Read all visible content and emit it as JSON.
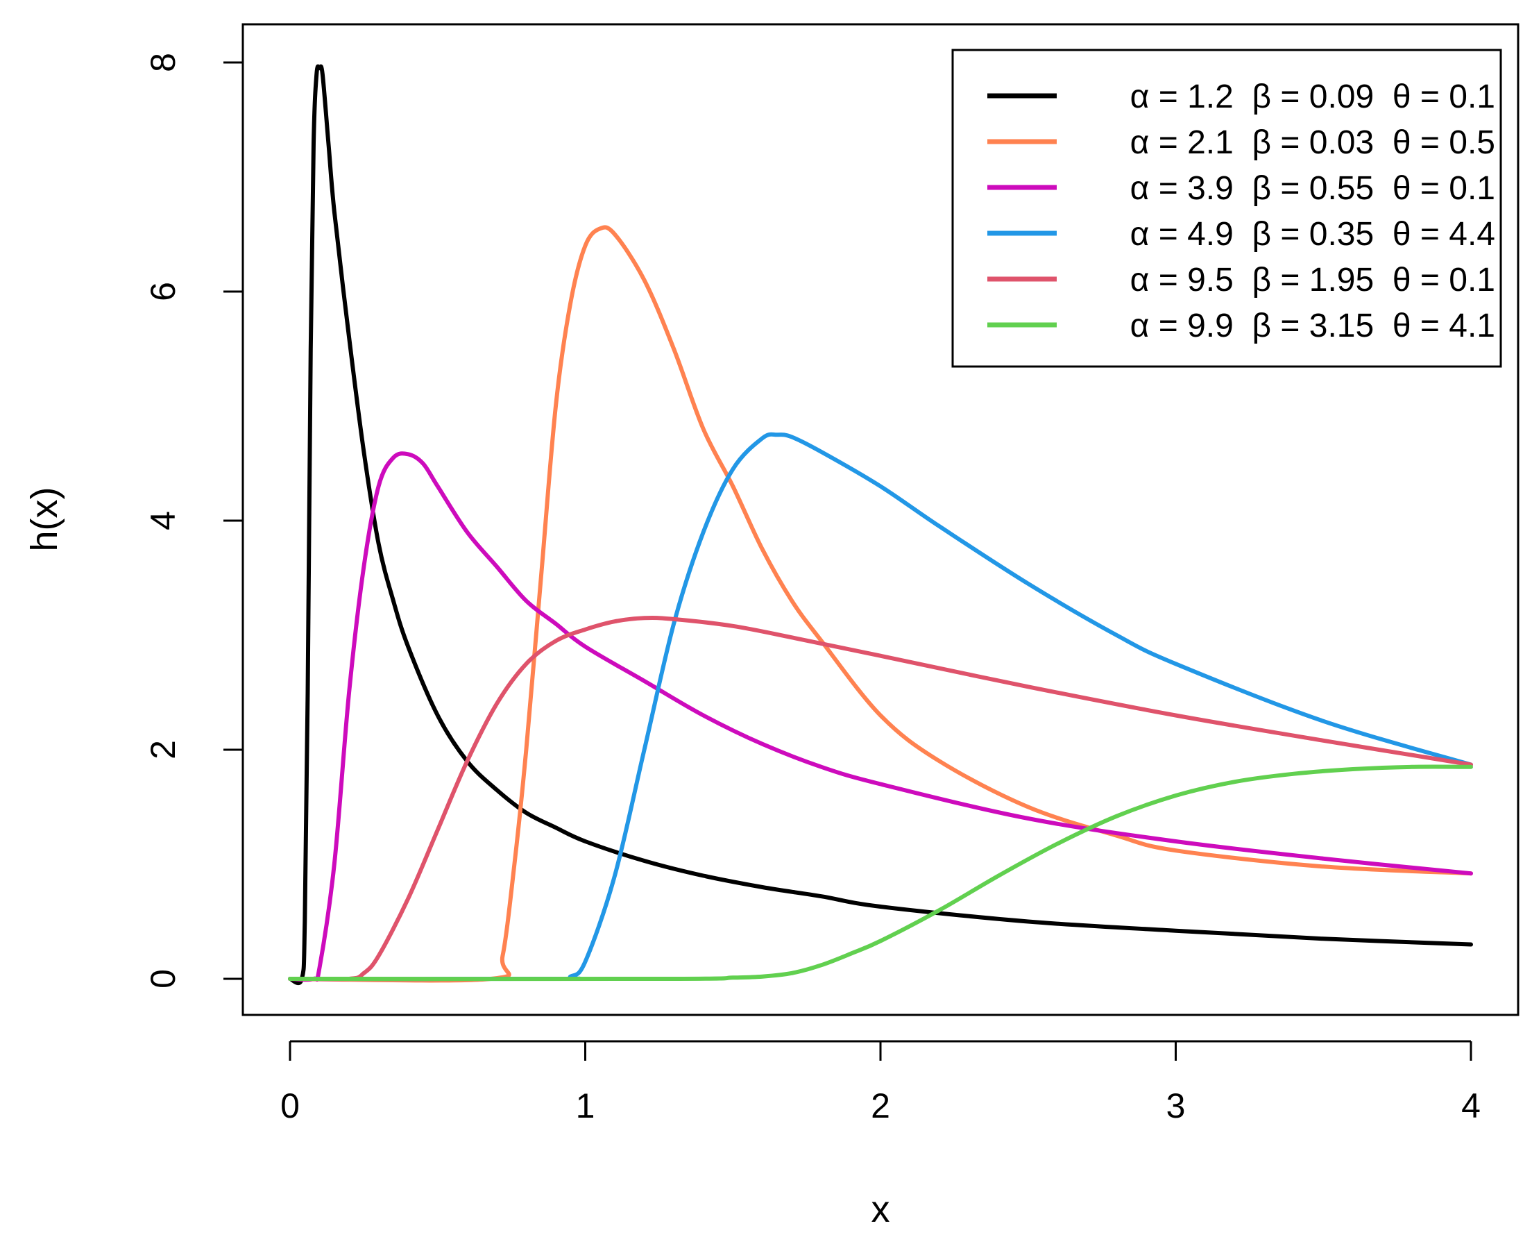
{
  "chart_data": {
    "type": "line",
    "title": "",
    "xlabel": "x",
    "ylabel": "h(x)",
    "xlim": [
      0,
      4
    ],
    "ylim": [
      0,
      8
    ],
    "xticks": [
      "0",
      "1",
      "2",
      "3",
      "4"
    ],
    "yticks": [
      "0",
      "2",
      "4",
      "6",
      "8"
    ],
    "grid": false,
    "legend_position": "top-right",
    "series": [
      {
        "name": "α = 1.2  β = 0.09  θ = 0.1",
        "color": "#000000",
        "points": [
          [
            0,
            0
          ],
          [
            0.04,
            0
          ],
          [
            0.05,
            0.5
          ],
          [
            0.06,
            2.5
          ],
          [
            0.07,
            5.5
          ],
          [
            0.08,
            7.3
          ],
          [
            0.09,
            7.9
          ],
          [
            0.1,
            7.95
          ],
          [
            0.11,
            7.9
          ],
          [
            0.13,
            7.3
          ],
          [
            0.15,
            6.7
          ],
          [
            0.2,
            5.6
          ],
          [
            0.25,
            4.6
          ],
          [
            0.3,
            3.8
          ],
          [
            0.35,
            3.3
          ],
          [
            0.4,
            2.9
          ],
          [
            0.5,
            2.3
          ],
          [
            0.6,
            1.9
          ],
          [
            0.7,
            1.65
          ],
          [
            0.8,
            1.45
          ],
          [
            0.9,
            1.32
          ],
          [
            1.0,
            1.2
          ],
          [
            1.2,
            1.03
          ],
          [
            1.4,
            0.9
          ],
          [
            1.6,
            0.8
          ],
          [
            1.8,
            0.72
          ],
          [
            2.0,
            0.63
          ],
          [
            2.5,
            0.5
          ],
          [
            3.0,
            0.42
          ],
          [
            3.5,
            0.35
          ],
          [
            4.0,
            0.3
          ]
        ]
      },
      {
        "name": "α = 2.1  β = 0.03  θ = 0.5",
        "color": "#FF8250",
        "points": [
          [
            0,
            0
          ],
          [
            0.68,
            0
          ],
          [
            0.72,
            0.2
          ],
          [
            0.76,
            1.0
          ],
          [
            0.8,
            2.0
          ],
          [
            0.85,
            3.5
          ],
          [
            0.9,
            5.0
          ],
          [
            0.95,
            5.9
          ],
          [
            1.0,
            6.4
          ],
          [
            1.05,
            6.55
          ],
          [
            1.1,
            6.5
          ],
          [
            1.2,
            6.1
          ],
          [
            1.3,
            5.5
          ],
          [
            1.4,
            4.8
          ],
          [
            1.5,
            4.3
          ],
          [
            1.6,
            3.75
          ],
          [
            1.7,
            3.3
          ],
          [
            1.8,
            2.95
          ],
          [
            2.0,
            2.3
          ],
          [
            2.2,
            1.9
          ],
          [
            2.5,
            1.5
          ],
          [
            2.8,
            1.25
          ],
          [
            3.0,
            1.12
          ],
          [
            3.5,
            0.98
          ],
          [
            4.0,
            0.92
          ]
        ]
      },
      {
        "name": "α = 3.9  β = 0.55  θ = 0.1",
        "color": "#CD0BBC",
        "points": [
          [
            0,
            0
          ],
          [
            0.08,
            0
          ],
          [
            0.1,
            0.1
          ],
          [
            0.15,
            1.0
          ],
          [
            0.2,
            2.5
          ],
          [
            0.25,
            3.6
          ],
          [
            0.3,
            4.3
          ],
          [
            0.35,
            4.55
          ],
          [
            0.4,
            4.58
          ],
          [
            0.45,
            4.5
          ],
          [
            0.5,
            4.3
          ],
          [
            0.6,
            3.9
          ],
          [
            0.7,
            3.6
          ],
          [
            0.8,
            3.3
          ],
          [
            0.9,
            3.1
          ],
          [
            1.0,
            2.9
          ],
          [
            1.2,
            2.6
          ],
          [
            1.4,
            2.3
          ],
          [
            1.6,
            2.05
          ],
          [
            1.8,
            1.85
          ],
          [
            2.0,
            1.7
          ],
          [
            2.5,
            1.4
          ],
          [
            3.0,
            1.2
          ],
          [
            3.5,
            1.05
          ],
          [
            4.0,
            0.92
          ]
        ]
      },
      {
        "name": "α = 4.9  β = 0.35  θ = 4.4",
        "color": "#2297E6",
        "points": [
          [
            0,
            0
          ],
          [
            0.9,
            0
          ],
          [
            0.95,
            0.02
          ],
          [
            1.0,
            0.15
          ],
          [
            1.1,
            0.9
          ],
          [
            1.2,
            2.0
          ],
          [
            1.3,
            3.1
          ],
          [
            1.4,
            3.9
          ],
          [
            1.5,
            4.45
          ],
          [
            1.6,
            4.72
          ],
          [
            1.65,
            4.75
          ],
          [
            1.7,
            4.73
          ],
          [
            1.8,
            4.6
          ],
          [
            2.0,
            4.3
          ],
          [
            2.2,
            3.95
          ],
          [
            2.5,
            3.45
          ],
          [
            2.8,
            3.0
          ],
          [
            3.0,
            2.75
          ],
          [
            3.5,
            2.25
          ],
          [
            4.0,
            1.87
          ]
        ]
      },
      {
        "name": "α = 9.5  β = 1.95  θ = 0.1",
        "color": "#DF536B",
        "points": [
          [
            0,
            0
          ],
          [
            0.2,
            0
          ],
          [
            0.25,
            0.05
          ],
          [
            0.3,
            0.2
          ],
          [
            0.4,
            0.7
          ],
          [
            0.5,
            1.3
          ],
          [
            0.6,
            1.9
          ],
          [
            0.7,
            2.4
          ],
          [
            0.8,
            2.75
          ],
          [
            0.9,
            2.95
          ],
          [
            1.0,
            3.05
          ],
          [
            1.1,
            3.12
          ],
          [
            1.2,
            3.15
          ],
          [
            1.3,
            3.14
          ],
          [
            1.5,
            3.08
          ],
          [
            1.7,
            2.98
          ],
          [
            2.0,
            2.82
          ],
          [
            2.5,
            2.55
          ],
          [
            3.0,
            2.3
          ],
          [
            3.5,
            2.08
          ],
          [
            4.0,
            1.87
          ]
        ]
      },
      {
        "name": "α = 9.9  β = 3.15  θ = 4.1",
        "color": "#61D04F",
        "points": [
          [
            0,
            0
          ],
          [
            1.3,
            0
          ],
          [
            1.5,
            0.01
          ],
          [
            1.6,
            0.02
          ],
          [
            1.7,
            0.05
          ],
          [
            1.8,
            0.12
          ],
          [
            1.9,
            0.22
          ],
          [
            2.0,
            0.33
          ],
          [
            2.2,
            0.6
          ],
          [
            2.4,
            0.9
          ],
          [
            2.6,
            1.18
          ],
          [
            2.8,
            1.42
          ],
          [
            3.0,
            1.6
          ],
          [
            3.2,
            1.72
          ],
          [
            3.4,
            1.79
          ],
          [
            3.6,
            1.83
          ],
          [
            3.8,
            1.85
          ],
          [
            4.0,
            1.85
          ]
        ]
      }
    ]
  }
}
